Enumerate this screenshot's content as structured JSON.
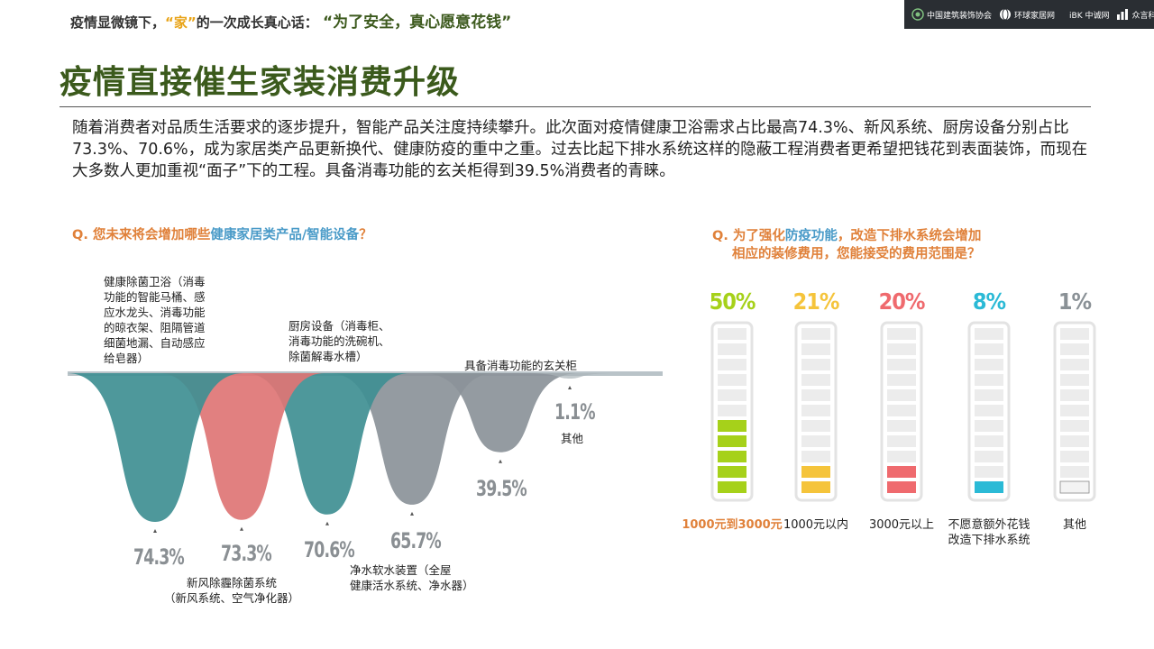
{
  "header": {
    "part1": "疫情显微镜下，",
    "part2": "“家”",
    "part3": "的一次成长真心话：",
    "part4": "“为了安全，真心愿意花钱”"
  },
  "logos": [
    "中国建筑装饰协会",
    "环球家居网",
    "iBK 中诚网",
    "众言科技"
  ],
  "title": "疫情直接催生家装消费升级",
  "summary": "随着消费者对品质生活要求的逐步提升，智能产品关注度持续攀升。此次面对疫情健康卫浴需求占比最高74.3%、新风系统、厨房设备分别占比73.3%、70.6%，成为家居类产品更新换代、健康防疫的重中之重。过去比起下排水系统这样的隐蔽工程消费者更希望把钱花到表面装饰，而现在大多数人更加重视“面子”下的工程。具备消毒功能的玄关柜得到39.5%消费者的青睐。",
  "left_question": {
    "prefix": "Q. 您未来将会增加哪些",
    "highlight": "健康家居类产品/智能设备",
    "suffix": "？"
  },
  "right_question": {
    "prefix": "Q. 为了强化",
    "highlight": "防疫功能",
    "suffix": "，改造下排水系统会增加",
    "line2": "相应的装修费用，您能接受的费用范围是？"
  },
  "chart_data": [
    {
      "type": "bar",
      "categories": [
        "健康除菌卫浴（消毒功能的智能马桶、感应水龙头、消毒功能的晾衣架、阻隔管道细菌地漏、自动感应给皂器）",
        "新风除霾除菌系统（新风系统、空气净化器）",
        "厨房设备（消毒柜、消毒功能的洗碗机、除菌解毒水槽）",
        "净水软水装置（全屋健康活水系统、净水器）",
        "具备消毒功能的玄关柜",
        "其他"
      ],
      "values": [
        74.3,
        73.3,
        70.6,
        65.7,
        39.5,
        1.1
      ],
      "value_labels": [
        "74.3%",
        "73.3%",
        "70.6%",
        "65.7%",
        "39.5%",
        "1.1%"
      ],
      "annotations": {
        "bathroom": [
          "健康除菌卫浴（消毒",
          "功能的智能马桶、感",
          "应水龙头、消毒功能",
          "的晾衣架、阻隔管道",
          "细菌地漏、自动感应",
          "给皂器）"
        ],
        "fresh_air": [
          "新风除霾除菌系统",
          "（新风系统、空气净化器）"
        ],
        "kitchen": [
          "厨房设备（消毒柜、",
          "消毒功能的洗碗机、",
          "除菌解毒水槽）"
        ],
        "water": [
          "净水软水装置（全屋",
          "健康活水系统、净水器）"
        ],
        "cabinet": [
          "具备消毒功能的玄关柜"
        ],
        "other": [
          "其他"
        ]
      },
      "colors": [
        "#3f8f93",
        "#de7575",
        "#3f8f93",
        "#8b9299",
        "#8b9299",
        "#a9b3b8"
      ],
      "ylim": [
        0,
        100
      ]
    },
    {
      "type": "bar",
      "categories": [
        "1000元到3000元",
        "1000元以内",
        "3000元以上",
        "不愿意额外花钱改造下排水系统",
        "其他"
      ],
      "label_lines": [
        [
          "1000元到3000元"
        ],
        [
          "1000元以内"
        ],
        [
          "3000元以上"
        ],
        [
          "不愿意额外花钱",
          "改造下排水系统"
        ],
        [
          "其他"
        ]
      ],
      "values": [
        50,
        21,
        20,
        8,
        1
      ],
      "value_labels": [
        "50%",
        "21%",
        "20%",
        "8%",
        "1%"
      ],
      "colors": [
        "#a6d11a",
        "#f5c43b",
        "#ef6a6e",
        "#2bbad6",
        "#9aa3a8"
      ],
      "ylim": [
        0,
        100
      ]
    }
  ]
}
